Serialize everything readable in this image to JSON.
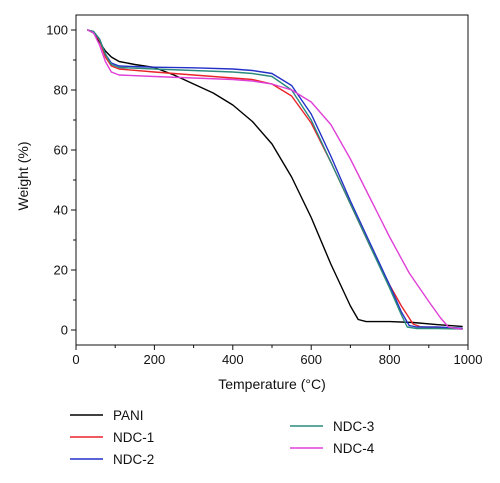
{
  "chart_data": {
    "type": "line",
    "xlabel": "Temperature (°C)",
    "ylabel": "Weight (%)",
    "xlim": [
      0,
      1000
    ],
    "ylim": [
      -5,
      105
    ],
    "xticks": [
      0,
      200,
      400,
      600,
      800,
      1000
    ],
    "yticks": [
      0,
      20,
      40,
      60,
      80,
      100
    ],
    "grid": false,
    "legend_position": "bottom",
    "series": [
      {
        "name": "PANI",
        "color": "#000000",
        "points": [
          [
            30,
            100
          ],
          [
            45,
            99
          ],
          [
            60,
            96
          ],
          [
            75,
            93
          ],
          [
            90,
            91
          ],
          [
            110,
            89.5
          ],
          [
            150,
            88.5
          ],
          [
            200,
            87.5
          ],
          [
            250,
            85
          ],
          [
            300,
            82
          ],
          [
            350,
            79
          ],
          [
            400,
            75
          ],
          [
            450,
            69.5
          ],
          [
            500,
            62
          ],
          [
            550,
            51
          ],
          [
            600,
            37.5
          ],
          [
            650,
            22
          ],
          [
            700,
            8
          ],
          [
            720,
            3.5
          ],
          [
            740,
            2.8
          ],
          [
            800,
            2.8
          ],
          [
            860,
            2.5
          ],
          [
            920,
            1.8
          ],
          [
            985,
            1.2
          ]
        ]
      },
      {
        "name": "NDC-1",
        "color": "#e8242a",
        "points": [
          [
            30,
            100
          ],
          [
            45,
            99.5
          ],
          [
            60,
            96.5
          ],
          [
            75,
            91
          ],
          [
            90,
            88
          ],
          [
            110,
            87
          ],
          [
            200,
            86
          ],
          [
            300,
            85
          ],
          [
            400,
            84
          ],
          [
            450,
            83.5
          ],
          [
            500,
            82
          ],
          [
            550,
            78
          ],
          [
            600,
            69
          ],
          [
            650,
            56
          ],
          [
            700,
            42
          ],
          [
            750,
            28
          ],
          [
            800,
            15
          ],
          [
            830,
            8
          ],
          [
            860,
            2
          ],
          [
            880,
            1
          ],
          [
            920,
            0.8
          ],
          [
            985,
            0.5
          ]
        ]
      },
      {
        "name": "NDC-2",
        "color": "#2431c8",
        "points": [
          [
            30,
            100
          ],
          [
            45,
            99.5
          ],
          [
            60,
            97
          ],
          [
            75,
            92
          ],
          [
            90,
            89
          ],
          [
            110,
            88
          ],
          [
            200,
            87.6
          ],
          [
            300,
            87.4
          ],
          [
            400,
            87
          ],
          [
            450,
            86.5
          ],
          [
            500,
            85.5
          ],
          [
            550,
            81.5
          ],
          [
            600,
            72
          ],
          [
            650,
            58
          ],
          [
            700,
            43
          ],
          [
            750,
            29
          ],
          [
            800,
            15
          ],
          [
            830,
            6
          ],
          [
            850,
            1.5
          ],
          [
            870,
            1
          ],
          [
            920,
            1
          ],
          [
            985,
            0.6
          ]
        ]
      },
      {
        "name": "NDC-3",
        "color": "#2b8a7e",
        "points": [
          [
            30,
            100
          ],
          [
            45,
            99.5
          ],
          [
            60,
            97
          ],
          [
            75,
            92
          ],
          [
            90,
            88.5
          ],
          [
            110,
            87.5
          ],
          [
            200,
            87
          ],
          [
            300,
            86.5
          ],
          [
            400,
            86
          ],
          [
            450,
            85.5
          ],
          [
            500,
            84.5
          ],
          [
            550,
            80
          ],
          [
            600,
            70
          ],
          [
            650,
            56
          ],
          [
            700,
            42
          ],
          [
            750,
            28
          ],
          [
            800,
            14
          ],
          [
            830,
            5
          ],
          [
            845,
            1
          ],
          [
            870,
            0.5
          ],
          [
            920,
            0.5
          ],
          [
            985,
            0.3
          ]
        ]
      },
      {
        "name": "NDC-4",
        "color": "#e040d8",
        "points": [
          [
            30,
            100
          ],
          [
            45,
            99
          ],
          [
            60,
            95
          ],
          [
            75,
            89.5
          ],
          [
            90,
            86
          ],
          [
            110,
            85
          ],
          [
            200,
            84.5
          ],
          [
            300,
            84
          ],
          [
            400,
            83.5
          ],
          [
            450,
            83
          ],
          [
            500,
            82
          ],
          [
            550,
            80
          ],
          [
            600,
            76
          ],
          [
            650,
            68.5
          ],
          [
            700,
            57
          ],
          [
            750,
            44
          ],
          [
            800,
            31
          ],
          [
            850,
            19
          ],
          [
            900,
            9.5
          ],
          [
            930,
            4
          ],
          [
            950,
            1
          ],
          [
            970,
            0.5
          ],
          [
            985,
            0.3
          ]
        ]
      }
    ]
  }
}
